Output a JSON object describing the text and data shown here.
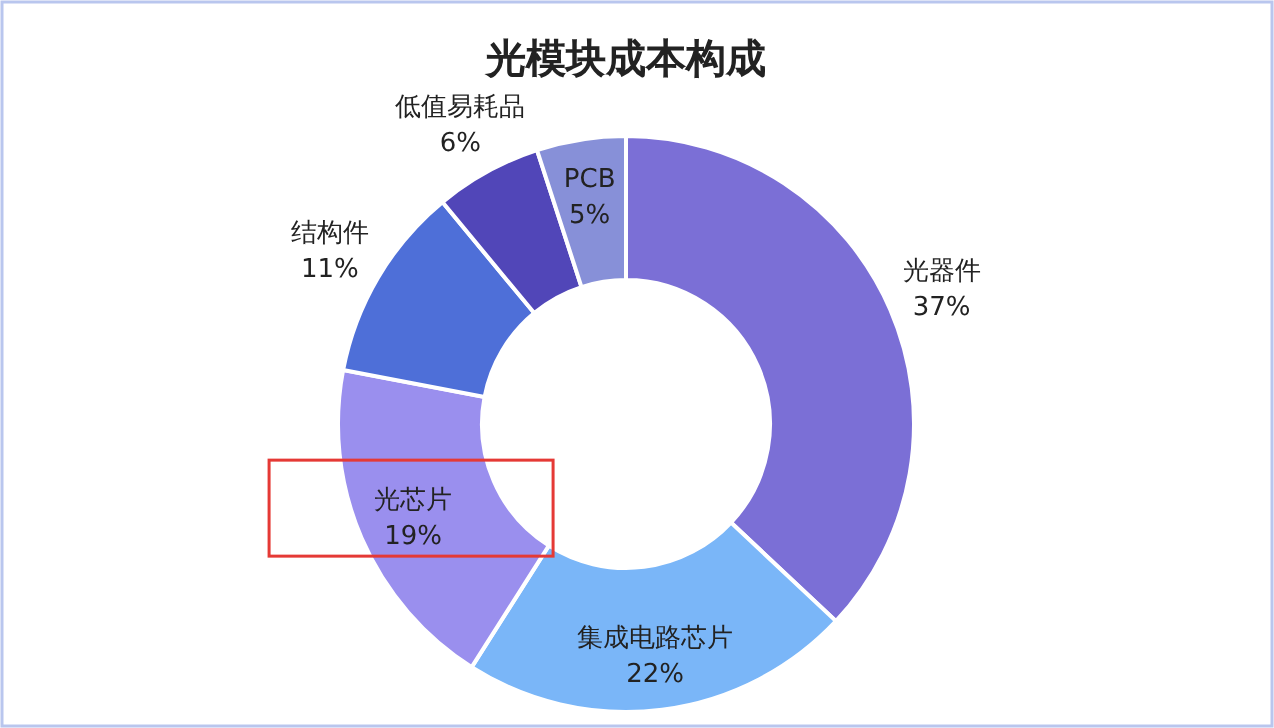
{
  "chart_data": {
    "type": "donut",
    "title": "光模块成本构成",
    "categories": [
      "光器件",
      "集成电路芯片",
      "光芯片",
      "结构件",
      "低值易耗品",
      "PCB"
    ],
    "values": [
      37,
      22,
      19,
      11,
      6,
      5
    ],
    "colors": [
      "#7b6fd6",
      "#7ab6f8",
      "#9a8fee",
      "#4e6fd8",
      "#5146b8",
      "#8790d8"
    ],
    "value_labels": [
      "37%",
      "22%",
      "19%",
      "11%",
      "6%",
      "5%"
    ]
  }
}
